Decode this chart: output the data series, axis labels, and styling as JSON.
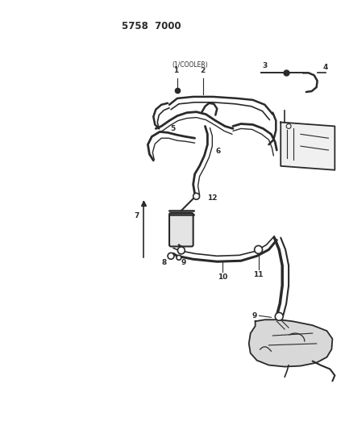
{
  "title": "5758  7000",
  "bg_color": "#ffffff",
  "line_color": "#2a2a2a",
  "label_color": "#000000",
  "fig_width": 4.28,
  "fig_height": 5.33,
  "dpi": 100,
  "annotation": "(1/COOLER)"
}
